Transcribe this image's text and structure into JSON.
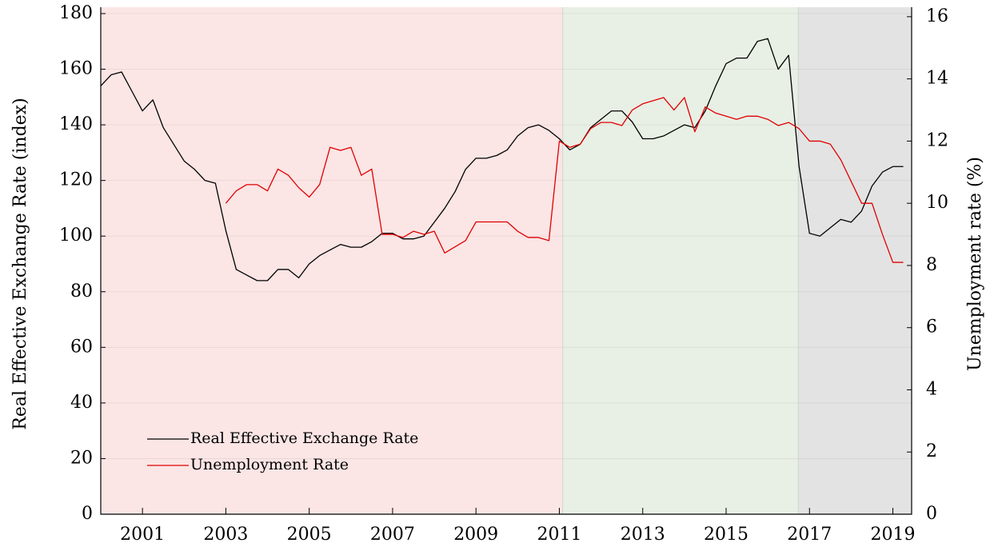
{
  "chart_data": {
    "type": "line",
    "x": [
      2000,
      2000.25,
      2000.5,
      2000.75,
      2001,
      2001.25,
      2001.5,
      2001.75,
      2002,
      2002.25,
      2002.5,
      2002.75,
      2003,
      2003.25,
      2003.5,
      2003.75,
      2004,
      2004.25,
      2004.5,
      2004.75,
      2005,
      2005.25,
      2005.5,
      2005.75,
      2006,
      2006.25,
      2006.5,
      2006.75,
      2007,
      2007.25,
      2007.5,
      2007.75,
      2008,
      2008.25,
      2008.5,
      2008.75,
      2009,
      2009.25,
      2009.5,
      2009.75,
      2010,
      2010.25,
      2010.5,
      2010.75,
      2011,
      2011.25,
      2011.5,
      2011.75,
      2012,
      2012.25,
      2012.5,
      2012.75,
      2013,
      2013.25,
      2013.5,
      2013.75,
      2014,
      2014.25,
      2014.5,
      2014.75,
      2015,
      2015.25,
      2015.5,
      2015.75,
      2016,
      2016.25,
      2016.5,
      2016.75,
      2017,
      2017.25,
      2017.5,
      2017.75,
      2018,
      2018.25,
      2018.5,
      2018.75,
      2019,
      2019.25
    ],
    "series": [
      {
        "name": "Real Effective Exchange Rate",
        "color": "#000000",
        "axis": "y",
        "values": [
          154,
          158,
          159,
          152,
          145,
          149,
          139,
          133,
          127,
          124,
          120,
          119,
          102,
          88,
          86,
          84,
          84,
          88,
          88,
          85,
          90,
          93,
          95,
          97,
          96,
          96,
          98,
          101,
          101,
          99,
          99,
          100,
          105,
          110,
          116,
          124,
          128,
          128,
          129,
          131,
          136,
          139,
          140,
          138,
          135,
          131,
          133,
          139,
          142,
          145,
          145,
          141,
          135,
          135,
          136,
          138,
          140,
          139,
          145,
          154,
          162,
          164,
          164,
          170,
          171,
          160,
          165,
          125,
          101,
          100,
          103,
          106,
          105,
          109,
          118,
          123,
          125,
          125
        ]
      },
      {
        "name": "Unemployment Rate",
        "color": "#e00000",
        "axis": "y2",
        "values": [
          null,
          null,
          null,
          null,
          null,
          null,
          null,
          null,
          null,
          null,
          null,
          null,
          10.0,
          10.4,
          10.6,
          10.6,
          10.4,
          11.1,
          10.9,
          10.5,
          10.2,
          10.6,
          11.8,
          11.7,
          11.8,
          10.9,
          11.1,
          9.0,
          9.0,
          8.9,
          9.1,
          9.0,
          9.1,
          8.4,
          8.6,
          8.8,
          9.4,
          9.4,
          9.4,
          9.4,
          9.1,
          8.9,
          8.9,
          8.8,
          12.0,
          11.8,
          11.9,
          12.4,
          12.6,
          12.6,
          12.5,
          13.0,
          13.2,
          13.3,
          13.4,
          13.0,
          13.4,
          12.3,
          13.1,
          12.9,
          12.8,
          12.7,
          12.8,
          12.8,
          12.7,
          12.5,
          12.6,
          12.4,
          12.0,
          12.0,
          11.9,
          11.4,
          10.7,
          10.0,
          10.0,
          9.0,
          8.1,
          8.1
        ]
      }
    ],
    "y_label": "Real Effective Exchange Rate (index)",
    "y2_label": "Unemployment rate (%)",
    "xlim": [
      2000,
      2019.45
    ],
    "xticks": [
      2001,
      2003,
      2005,
      2007,
      2009,
      2011,
      2013,
      2015,
      2017,
      2019
    ],
    "ylim": [
      0,
      180
    ],
    "yticks": [
      0,
      20,
      40,
      60,
      80,
      100,
      120,
      140,
      160,
      180
    ],
    "y2lim": [
      0,
      16.1
    ],
    "y2ticks": [
      0,
      2,
      4,
      6,
      8,
      10,
      12,
      14,
      16
    ],
    "regions": [
      {
        "start": 2000,
        "end": 2011.08,
        "color": "#fbe5e5"
      },
      {
        "start": 2011.08,
        "end": 2016.73,
        "color": "#e8efe5"
      },
      {
        "start": 2016.73,
        "end": 2019.45,
        "color": "#e3e3e3"
      }
    ],
    "grid": true,
    "legend": "lower left"
  }
}
